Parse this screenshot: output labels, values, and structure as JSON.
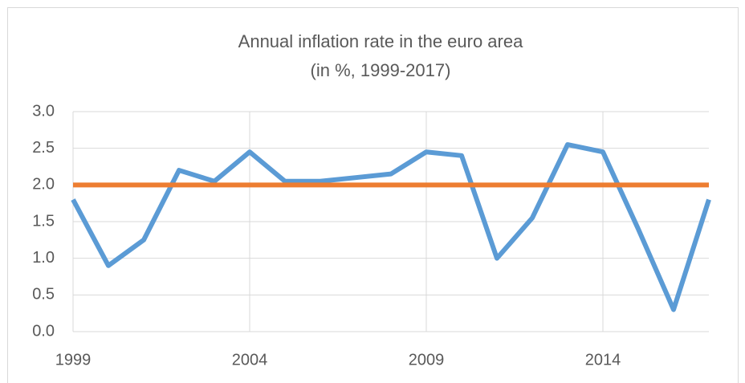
{
  "chart_data": {
    "type": "line",
    "title": "Annual inflation rate in the euro area",
    "subtitle": "(in %, 1999-2017)",
    "x": [
      1999,
      2000,
      2001,
      2002,
      2003,
      2004,
      2005,
      2006,
      2007,
      2008,
      2009,
      2010,
      2011,
      2012,
      2013,
      2014,
      2015,
      2016,
      2017
    ],
    "series": [
      {
        "color": "#5b9bd5",
        "values": [
          1.8,
          0.9,
          1.25,
          2.2,
          2.05,
          2.45,
          2.05,
          2.05,
          2.1,
          2.15,
          2.45,
          2.4,
          1.0,
          1.55,
          2.55,
          2.45,
          1.4,
          0.3,
          1.8
        ]
      },
      {
        "color": "#ed7d31",
        "values": [
          2,
          2,
          2,
          2,
          2,
          2,
          2,
          2,
          2,
          2,
          2,
          2,
          2,
          2,
          2,
          2,
          2,
          2,
          2
        ]
      }
    ],
    "xlim": [
      1999,
      2017
    ],
    "xticks": [
      1999,
      2004,
      2009,
      2014
    ],
    "ylim": [
      0,
      3
    ],
    "yticks": [
      {
        "value": 0,
        "label": "0.0"
      },
      {
        "value": 0.5,
        "label": "0.5"
      },
      {
        "value": 1,
        "label": "1.0"
      },
      {
        "value": 1.5,
        "label": "1.5"
      },
      {
        "value": 2,
        "label": "2.0"
      },
      {
        "value": 2.5,
        "label": "2.5"
      },
      {
        "value": 3,
        "label": "3.0"
      }
    ],
    "grid": true
  }
}
